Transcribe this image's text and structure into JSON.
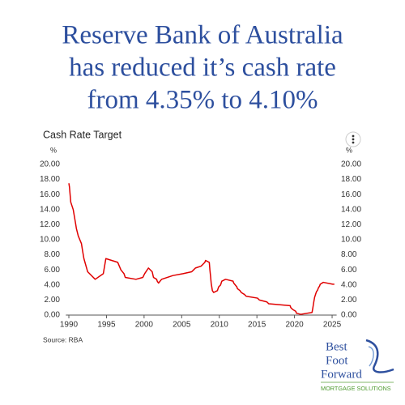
{
  "chart_data": {
    "type": "line",
    "title": [
      "Reserve Bank of Australia",
      "has reduced it’s cash rate",
      "from 4.35% to 4.10%"
    ],
    "subtitle": "Cash Rate Target",
    "y_unit": "%",
    "y2_unit": "%",
    "source": "Source: RBA",
    "x": [
      1990.0,
      1990.08,
      1990.25,
      1990.58,
      1990.75,
      1990.92,
      1991.0,
      1991.25,
      1991.67,
      1991.83,
      1992.0,
      1992.5,
      1993.5,
      1994.58,
      1994.75,
      1994.92,
      1996.5,
      1996.92,
      1997.33,
      1997.5,
      1998.92,
      1999.83,
      2000.08,
      2000.58,
      2001.08,
      2001.25,
      2001.67,
      2001.75,
      2001.92,
      2002.33,
      2003.83,
      2005.17,
      2006.33,
      2006.58,
      2006.83,
      2007.58,
      2007.83,
      2008.08,
      2008.17,
      2008.67,
      2008.75,
      2008.83,
      2008.92,
      2009.08,
      2009.25,
      2009.75,
      2009.83,
      2009.92,
      2010.17,
      2010.25,
      2010.33,
      2010.83,
      2011.83,
      2011.92,
      2012.33,
      2012.42,
      2012.75,
      2012.92,
      2013.33,
      2013.58,
      2015.08,
      2015.33,
      2016.33,
      2016.58,
      2019.42,
      2019.5,
      2019.75,
      2020.17,
      2020.25,
      2020.83,
      2022.33,
      2022.42,
      2022.5,
      2022.58,
      2022.67,
      2022.75,
      2022.83,
      2022.92,
      2023.08,
      2023.17,
      2023.33,
      2023.42,
      2023.83,
      2025.08,
      2025.3
    ],
    "series": [
      {
        "name": "Cash Rate Target",
        "color": "#e00000",
        "values": [
          17.5,
          17.0,
          15.0,
          14.0,
          13.0,
          12.0,
          11.5,
          10.5,
          9.5,
          8.5,
          7.5,
          5.75,
          4.75,
          5.5,
          6.5,
          7.5,
          7.0,
          6.0,
          5.5,
          5.0,
          4.75,
          5.0,
          5.5,
          6.25,
          5.75,
          5.0,
          4.75,
          4.5,
          4.25,
          4.75,
          5.25,
          5.5,
          5.75,
          6.0,
          6.25,
          6.5,
          6.75,
          7.0,
          7.25,
          7.0,
          6.0,
          5.25,
          4.25,
          3.25,
          3.0,
          3.25,
          3.5,
          3.75,
          4.0,
          4.25,
          4.5,
          4.75,
          4.5,
          4.25,
          3.75,
          3.5,
          3.25,
          3.0,
          2.75,
          2.5,
          2.25,
          2.0,
          1.75,
          1.5,
          1.25,
          1.0,
          0.75,
          0.5,
          0.25,
          0.1,
          0.35,
          0.85,
          1.35,
          1.85,
          2.35,
          2.6,
          2.85,
          3.1,
          3.35,
          3.6,
          3.85,
          4.1,
          4.35,
          4.1,
          4.1
        ]
      }
    ],
    "xlim": [
      1989.6,
      2025.6
    ],
    "xticks": [
      1990,
      1995,
      2000,
      2005,
      2010,
      2015,
      2020,
      2025
    ],
    "ylim": [
      0,
      20
    ],
    "yticks": [
      {
        "value": 0,
        "label": "0.00"
      },
      {
        "value": 2,
        "label": "2.00"
      },
      {
        "value": 4,
        "label": "4.00"
      },
      {
        "value": 6,
        "label": "6.00"
      },
      {
        "value": 8,
        "label": "8.00"
      },
      {
        "value": 10,
        "label": "10.00"
      },
      {
        "value": 12,
        "label": "12.00"
      },
      {
        "value": 14,
        "label": "14.00"
      },
      {
        "value": 16,
        "label": "16.00"
      },
      {
        "value": 18,
        "label": "18.00"
      },
      {
        "value": 20,
        "label": "20.00"
      }
    ],
    "y2lim": [
      0,
      20
    ],
    "y2ticks": [
      {
        "value": 0,
        "label": "0.00"
      },
      {
        "value": 2,
        "label": "2.00"
      },
      {
        "value": 4,
        "label": "4.00"
      },
      {
        "value": 6,
        "label": "6.00"
      },
      {
        "value": 8,
        "label": "8.00"
      },
      {
        "value": 10,
        "label": "10.00"
      },
      {
        "value": 12,
        "label": "12.00"
      },
      {
        "value": 14,
        "label": "14.00"
      },
      {
        "value": 16,
        "label": "16.00"
      },
      {
        "value": 18,
        "label": "18.00"
      },
      {
        "value": 20,
        "label": "20.00"
      }
    ],
    "grid": false
  },
  "logo": {
    "lines": [
      "Best",
      "Foot",
      "Forward"
    ],
    "tagline": "MORTGAGE SOLUTIONS"
  }
}
